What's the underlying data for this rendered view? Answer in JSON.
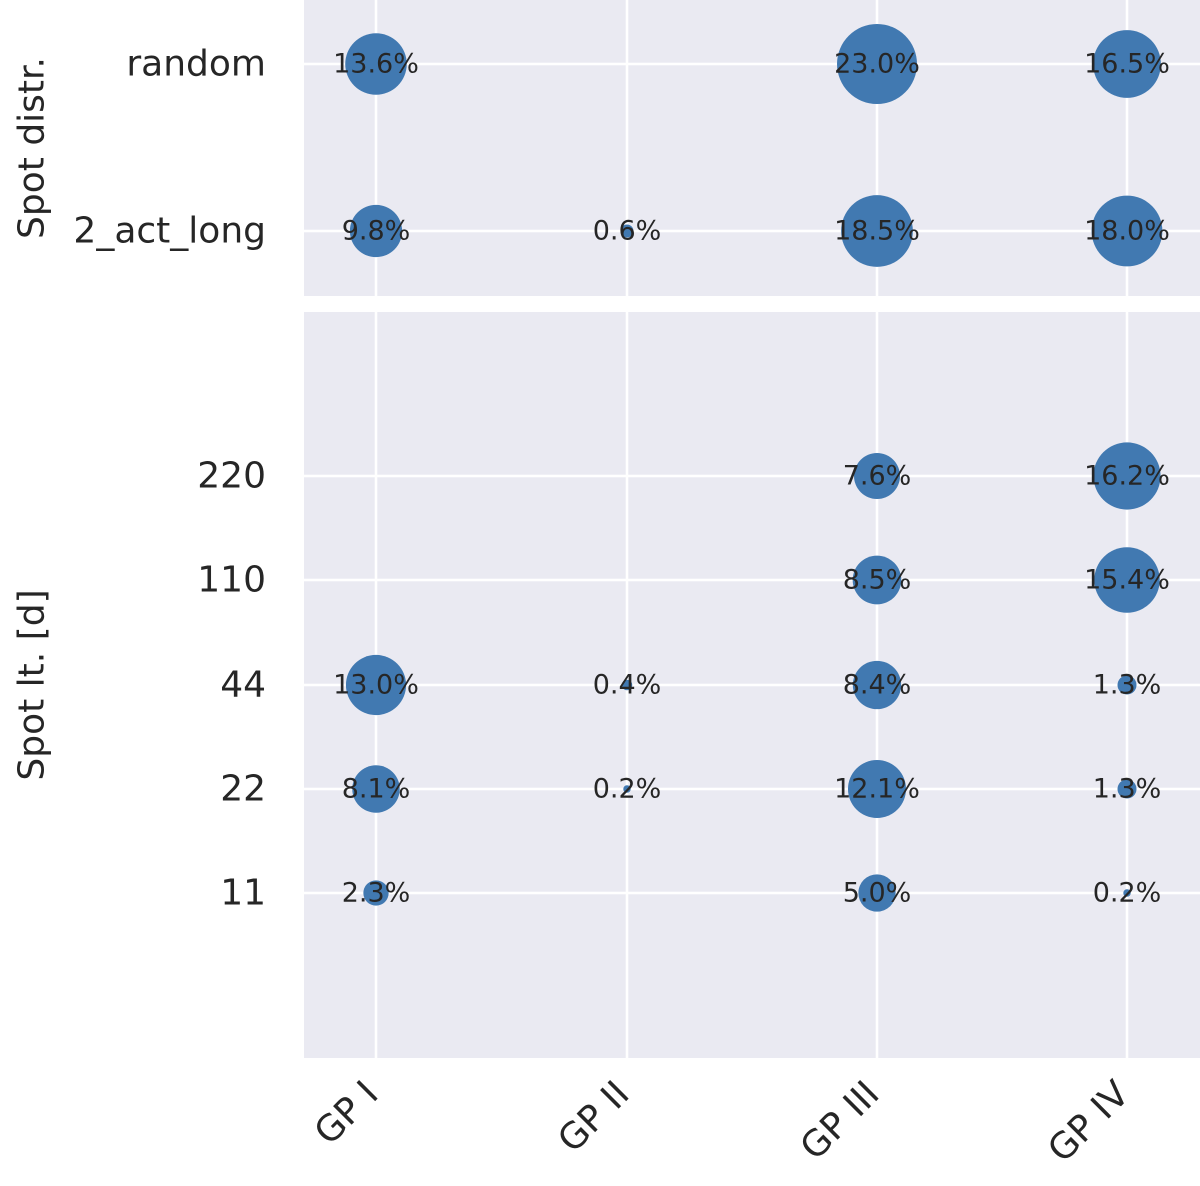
{
  "chart_data": [
    {
      "type": "scatter",
      "panel": "top",
      "ylabel": "Spot distr.",
      "categories_x": [
        "GP I",
        "GP II",
        "GP III",
        "GP IV"
      ],
      "categories_y": [
        "random",
        "2_act_long"
      ],
      "grid": true,
      "points": [
        {
          "x": "GP I",
          "y": "random",
          "value": 13.6,
          "label": "13.6%"
        },
        {
          "x": "GP III",
          "y": "random",
          "value": 23.0,
          "label": "23.0%"
        },
        {
          "x": "GP IV",
          "y": "random",
          "value": 16.5,
          "label": "16.5%"
        },
        {
          "x": "GP I",
          "y": "2_act_long",
          "value": 9.8,
          "label": "9.8%"
        },
        {
          "x": "GP II",
          "y": "2_act_long",
          "value": 0.6,
          "label": "0.6%"
        },
        {
          "x": "GP III",
          "y": "2_act_long",
          "value": 18.5,
          "label": "18.5%"
        },
        {
          "x": "GP IV",
          "y": "2_act_long",
          "value": 18.0,
          "label": "18.0%"
        }
      ]
    },
    {
      "type": "scatter",
      "panel": "bottom",
      "ylabel": "Spot lt. [d]",
      "categories_x": [
        "GP I",
        "GP II",
        "GP III",
        "GP IV"
      ],
      "categories_y": [
        "11",
        "22",
        "44",
        "110",
        "220"
      ],
      "grid": true,
      "points": [
        {
          "x": "GP III",
          "y": "220",
          "value": 7.6,
          "label": "7.6%"
        },
        {
          "x": "GP IV",
          "y": "220",
          "value": 16.2,
          "label": "16.2%"
        },
        {
          "x": "GP III",
          "y": "110",
          "value": 8.5,
          "label": "8.5%"
        },
        {
          "x": "GP IV",
          "y": "110",
          "value": 15.4,
          "label": "15.4%"
        },
        {
          "x": "GP I",
          "y": "44",
          "value": 13.0,
          "label": "13.0%"
        },
        {
          "x": "GP II",
          "y": "44",
          "value": 0.4,
          "label": "0.4%"
        },
        {
          "x": "GP III",
          "y": "44",
          "value": 8.4,
          "label": "8.4%"
        },
        {
          "x": "GP IV",
          "y": "44",
          "value": 1.3,
          "label": "1.3%"
        },
        {
          "x": "GP I",
          "y": "22",
          "value": 8.1,
          "label": "8.1%"
        },
        {
          "x": "GP II",
          "y": "22",
          "value": 0.2,
          "label": "0.2%"
        },
        {
          "x": "GP III",
          "y": "22",
          "value": 12.1,
          "label": "12.1%"
        },
        {
          "x": "GP IV",
          "y": "22",
          "value": 1.3,
          "label": "1.3%"
        },
        {
          "x": "GP I",
          "y": "11",
          "value": 2.3,
          "label": "2.3%"
        },
        {
          "x": "GP III",
          "y": "11",
          "value": 5.0,
          "label": "5.0%"
        },
        {
          "x": "GP IV",
          "y": "11",
          "value": 0.2,
          "label": "0.2%"
        }
      ]
    }
  ],
  "colors": {
    "background": "#eaeaf2",
    "bubble": "#4179b1",
    "grid": "#ffffff",
    "text": "#262626"
  }
}
